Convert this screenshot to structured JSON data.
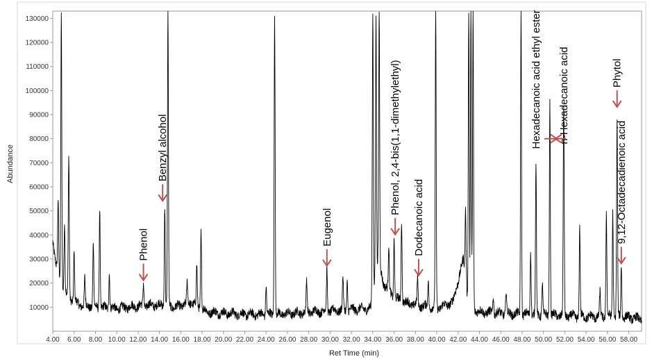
{
  "chart_data": {
    "type": "line",
    "title": "",
    "xlabel": "Ret Time (min)",
    "ylabel": "Abundance",
    "xlim": [
      4.0,
      59.2
    ],
    "ylim": [
      0,
      133000
    ],
    "x_ticks": [
      "4.00",
      "6.00",
      "8.00",
      "10.00",
      "12.00",
      "14.00",
      "16.00",
      "18.00",
      "20.00",
      "22.00",
      "24.00",
      "26.00",
      "28.00",
      "30.00",
      "32.00",
      "34.00",
      "36.00",
      "38.00",
      "40.00",
      "42.00",
      "44.00",
      "46.00",
      "48.00",
      "50.00",
      "52.00",
      "54.00",
      "56.00",
      "58.00"
    ],
    "y_ticks": [
      "10000",
      "20000",
      "30000",
      "40000",
      "50000",
      "60000",
      "70000",
      "80000",
      "90000",
      "100000",
      "110000",
      "120000",
      "130000"
    ],
    "grid": false,
    "baseline_trace": [
      [
        4.0,
        38000
      ],
      [
        4.3,
        28000
      ],
      [
        4.8,
        20000
      ],
      [
        5.5,
        14000
      ],
      [
        6.5,
        11000
      ],
      [
        8.0,
        10000
      ],
      [
        10.0,
        9500
      ],
      [
        12.0,
        10500
      ],
      [
        14.0,
        11000
      ],
      [
        15.5,
        10000
      ],
      [
        17.0,
        12000
      ],
      [
        18.5,
        8000
      ],
      [
        20.0,
        7500
      ],
      [
        22.0,
        7000
      ],
      [
        24.0,
        7000
      ],
      [
        26.0,
        7200
      ],
      [
        28.0,
        8000
      ],
      [
        30.0,
        8500
      ],
      [
        32.0,
        9000
      ],
      [
        33.8,
        9500
      ],
      [
        34.5,
        30000
      ],
      [
        35.0,
        20000
      ],
      [
        36.0,
        14000
      ],
      [
        37.0,
        12000
      ],
      [
        38.0,
        11000
      ],
      [
        40.0,
        9500
      ],
      [
        41.5,
        12000
      ],
      [
        42.5,
        30000
      ],
      [
        43.0,
        10000
      ],
      [
        44.0,
        8000
      ],
      [
        46.0,
        7500
      ],
      [
        48.0,
        7000
      ],
      [
        50.0,
        6800
      ],
      [
        52.0,
        6500
      ],
      [
        54.0,
        6000
      ],
      [
        56.0,
        6200
      ],
      [
        58.0,
        5800
      ],
      [
        59.2,
        5000
      ]
    ],
    "peaks": [
      [
        4.5,
        54000
      ],
      [
        4.8,
        133000
      ],
      [
        5.1,
        45000
      ],
      [
        5.5,
        72000
      ],
      [
        6.0,
        33000
      ],
      [
        7.0,
        22000
      ],
      [
        7.8,
        37000
      ],
      [
        8.4,
        52000
      ],
      [
        9.3,
        25000
      ],
      [
        12.5,
        20000
      ],
      [
        14.5,
        53000
      ],
      [
        14.8,
        133000
      ],
      [
        16.6,
        20000
      ],
      [
        17.5,
        27000
      ],
      [
        17.9,
        42000
      ],
      [
        24.0,
        19000
      ],
      [
        24.8,
        133000
      ],
      [
        27.8,
        21000
      ],
      [
        29.7,
        26000
      ],
      [
        31.2,
        22000
      ],
      [
        31.6,
        21000
      ],
      [
        34.0,
        133000
      ],
      [
        34.3,
        133000
      ],
      [
        34.6,
        133000
      ],
      [
        35.5,
        35000
      ],
      [
        36.0,
        39000
      ],
      [
        36.7,
        46000
      ],
      [
        38.2,
        22000
      ],
      [
        39.2,
        21000
      ],
      [
        39.9,
        133000
      ],
      [
        42.7,
        52000
      ],
      [
        43.0,
        133000
      ],
      [
        43.2,
        133000
      ],
      [
        43.4,
        133000
      ],
      [
        45.3,
        15000
      ],
      [
        46.5,
        17000
      ],
      [
        47.9,
        133000
      ],
      [
        48.8,
        34000
      ],
      [
        49.3,
        70000
      ],
      [
        49.9,
        20000
      ],
      [
        50.6,
        96000
      ],
      [
        51.9,
        92000
      ],
      [
        53.4,
        43000
      ],
      [
        55.3,
        16000
      ],
      [
        55.9,
        50000
      ],
      [
        56.5,
        50000
      ],
      [
        56.9,
        88000
      ],
      [
        57.3,
        28000
      ]
    ],
    "annotations": [
      {
        "text": "Phenol",
        "x": 12.5,
        "y": 20000,
        "direction": "down"
      },
      {
        "text": "Benzyl alcohol",
        "x": 14.3,
        "y": 53000,
        "direction": "down"
      },
      {
        "text": "Eugenol",
        "x": 29.7,
        "y": 26000,
        "direction": "down"
      },
      {
        "text": "Phenol, 2,4-bis(1,1-dimethylethyl)",
        "x": 36.1,
        "y": 39000,
        "direction": "down"
      },
      {
        "text": "Dodecanoic acid",
        "x": 38.3,
        "y": 22000,
        "direction": "down"
      },
      {
        "text": "Hexadecanoic acid ethyl ester",
        "x": 49.3,
        "y": 74000,
        "direction": "right"
      },
      {
        "text": "n-Hexadecanoic acid",
        "x": 51.9,
        "y": 76000,
        "direction": "left"
      },
      {
        "text": "Phytol",
        "x": 56.9,
        "y": 92000,
        "direction": "down"
      },
      {
        "text": "9,12-Octadecadienoic acid",
        "x": 57.3,
        "y": 27000,
        "direction": "down"
      }
    ],
    "line_color": "#000000",
    "arrow_color": "#c0504d"
  }
}
